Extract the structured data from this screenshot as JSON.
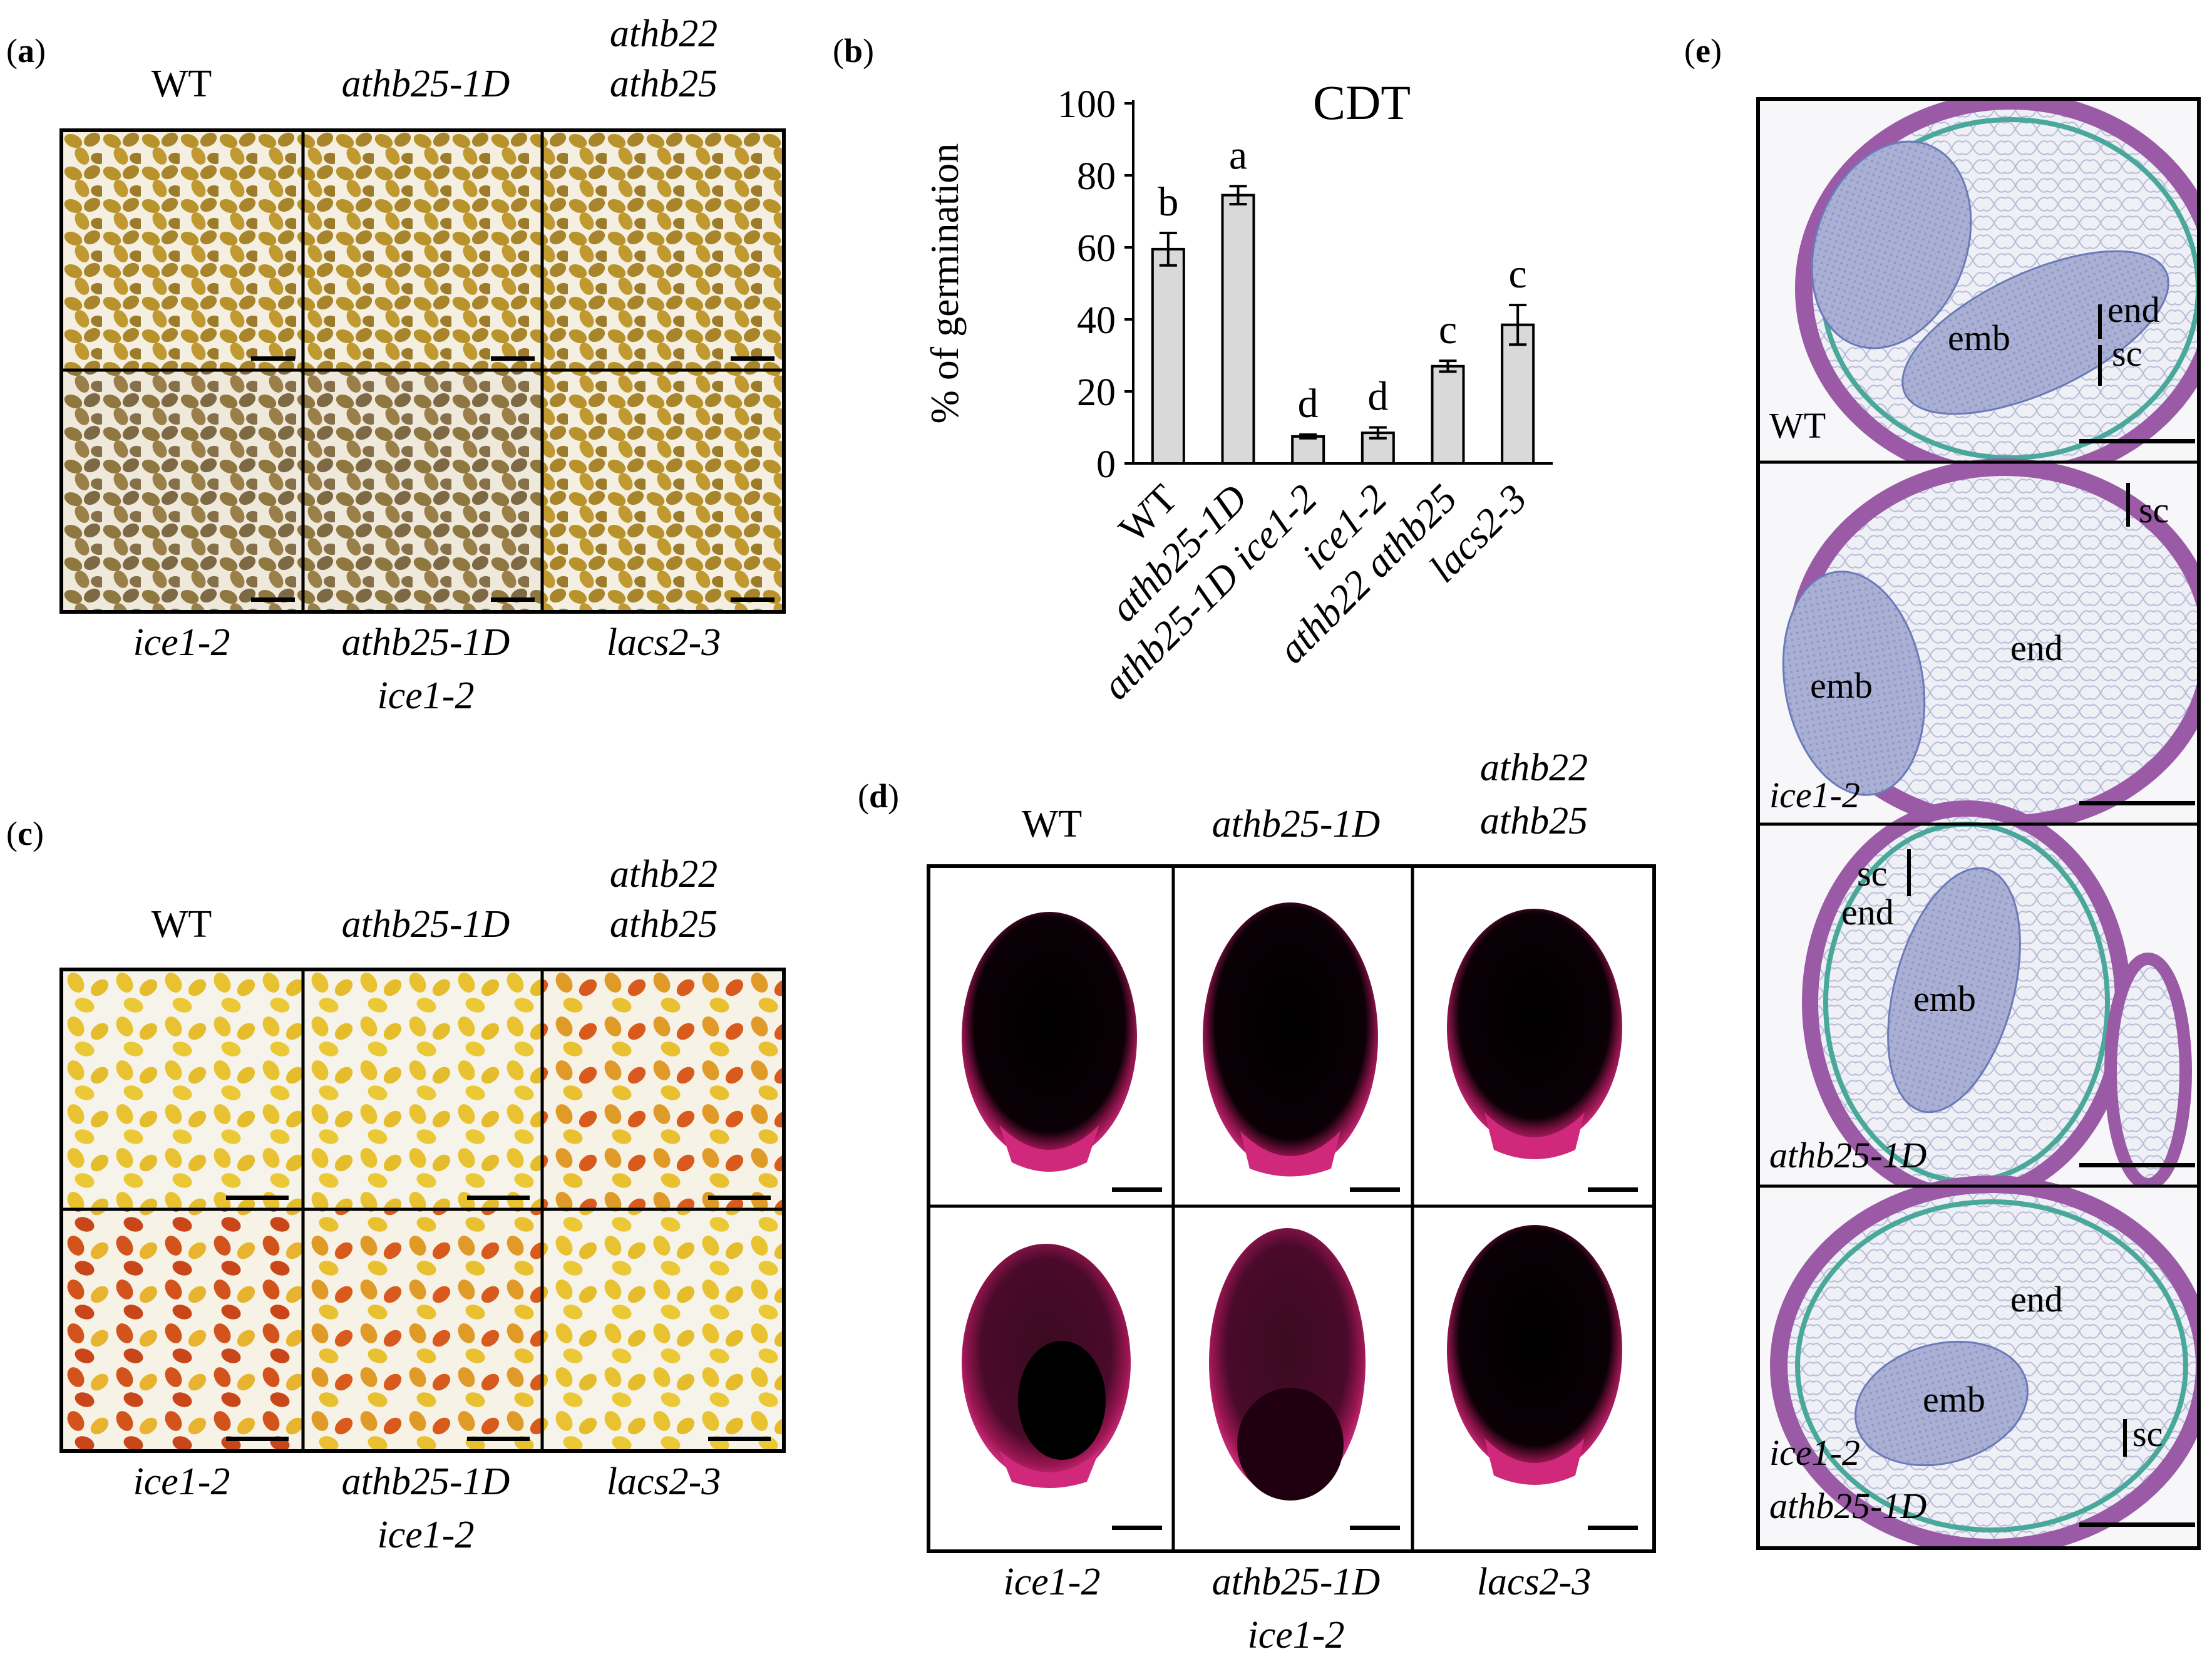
{
  "panels": {
    "a": {
      "label_open": "(",
      "label_letter": "a",
      "label_close": ")",
      "top_labels": [
        "WT",
        "athb25-1D",
        "athb22",
        "athb25"
      ],
      "bottom_labels": [
        "ice1-2",
        "athb25-1D",
        "ice1-2",
        "lacs2-3"
      ],
      "seed_color": "#b8922a"
    },
    "b": {
      "label_open": "(",
      "label_letter": "b",
      "label_close": ")"
    },
    "c": {
      "label_open": "(",
      "label_letter": "c",
      "label_close": ")",
      "top_labels": [
        "WT",
        "athb25-1D",
        "athb22",
        "athb25"
      ],
      "bottom_labels": [
        "ice1-2",
        "athb25-1D",
        "ice1-2",
        "lacs2-3"
      ],
      "seed_color": "#e8c230",
      "stained_color": "#d2541c"
    },
    "d": {
      "label_open": "(",
      "label_letter": "d",
      "label_close": ")",
      "top_labels": [
        "WT",
        "athb25-1D",
        "athb22",
        "athb25"
      ],
      "bottom_labels": [
        "ice1-2",
        "athb25-1D",
        "ice1-2",
        "lacs2-3"
      ],
      "stain_color": "#c81e6e"
    },
    "e": {
      "label_open": "(",
      "label_letter": "e",
      "tissue": {
        "end": "end",
        "sc": "sc",
        "emb": "emb"
      },
      "row_labels": [
        "WT",
        "ice1-2",
        "athb25-1D",
        "ice1-2",
        "athb25-1D"
      ]
    }
  },
  "chart_data": {
    "type": "bar",
    "title": "CDT",
    "ylabel": "% of germination",
    "xlabel": "",
    "ylim": [
      0,
      100
    ],
    "yticks": [
      "0",
      "20",
      "40",
      "60",
      "80",
      "100"
    ],
    "categories": [
      "WT",
      "athb25-1D",
      "athb25-1D ice1-2",
      "ice1-2",
      "athb22 athb25",
      "lacs2-3"
    ],
    "values": [
      59.5,
      74.5,
      7.5,
      8.5,
      27,
      38.5
    ],
    "errors": [
      4.5,
      2.5,
      0.5,
      1.5,
      1.5,
      5.5
    ],
    "letters": [
      "b",
      "a",
      "d",
      "d",
      "c",
      "c"
    ],
    "bar_color": "#d9d9d9"
  }
}
